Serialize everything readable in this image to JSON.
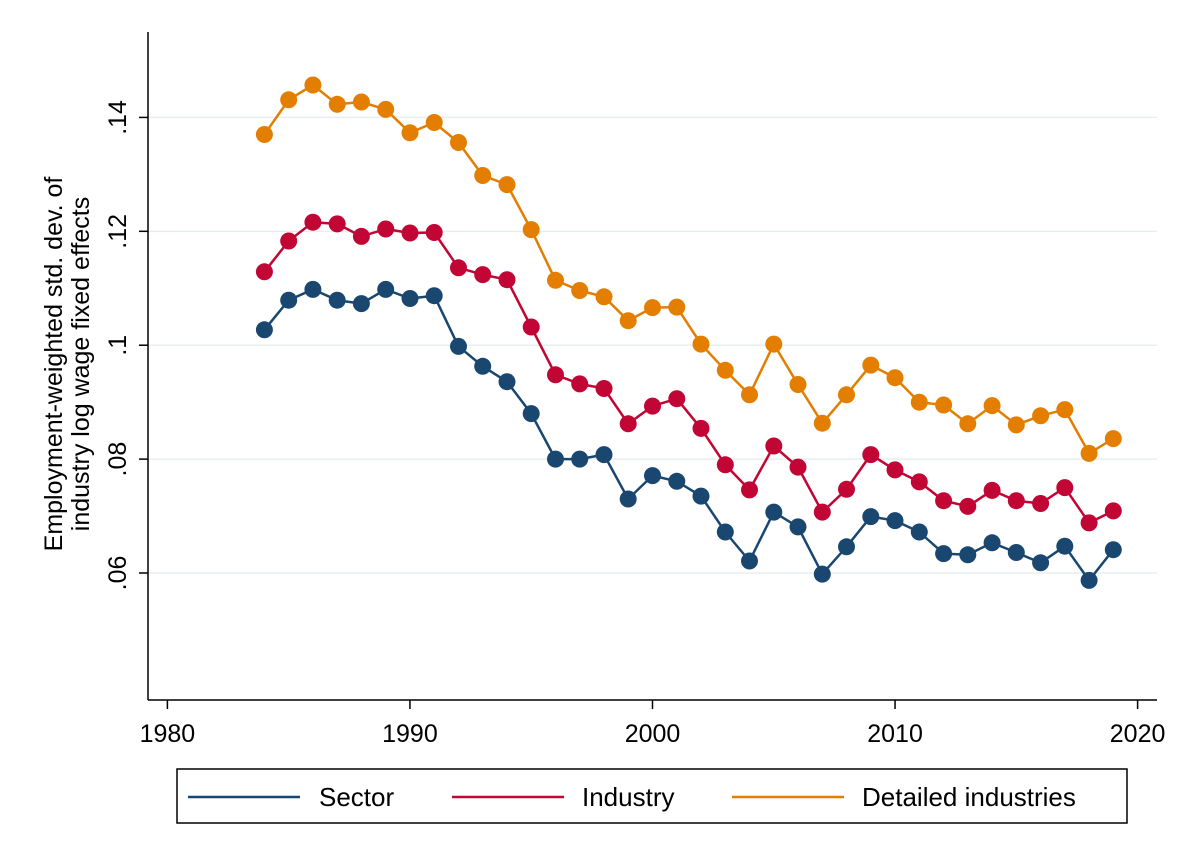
{
  "chart_data": {
    "type": "line",
    "title": "",
    "xlabel": "",
    "ylabel_lines": [
      "Employment-weighted std. dev. of",
      "industry log wage fixed effects"
    ],
    "xlim": [
      1979.2,
      2020.8
    ],
    "ylim": [
      0.0377,
      0.155
    ],
    "x_ticks": [
      1980,
      1990,
      2000,
      2010,
      2020
    ],
    "x_tick_labels": [
      "1980",
      "1990",
      "2000",
      "2010",
      "2020"
    ],
    "y_ticks": [
      0.06,
      0.08,
      0.1,
      0.12,
      0.14
    ],
    "y_tick_labels": [
      ".06",
      ".08",
      ".1",
      ".12",
      ".14"
    ],
    "grid": true,
    "legend_position": "bottom",
    "x": [
      1984,
      1985,
      1986,
      1987,
      1988,
      1989,
      1990,
      1991,
      1992,
      1993,
      1994,
      1995,
      1996,
      1997,
      1998,
      1999,
      2000,
      2001,
      2002,
      2003,
      2004,
      2005,
      2006,
      2007,
      2008,
      2009,
      2010,
      2011,
      2012,
      2013,
      2014,
      2015,
      2016,
      2017,
      2018,
      2019
    ],
    "series": [
      {
        "name": "Sector",
        "color": "#1a476f",
        "values": [
          0.1027,
          0.1079,
          0.1098,
          0.1079,
          0.1073,
          0.1098,
          0.1082,
          0.1087,
          0.0998,
          0.0963,
          0.0936,
          0.088,
          0.08,
          0.08,
          0.0808,
          0.073,
          0.0771,
          0.0761,
          0.0735,
          0.0672,
          0.0621,
          0.0707,
          0.0681,
          0.0598,
          0.0646,
          0.0699,
          0.0692,
          0.0672,
          0.0634,
          0.0632,
          0.0653,
          0.0636,
          0.0618,
          0.0647,
          0.0587,
          0.0641
        ]
      },
      {
        "name": "Industry",
        "color": "#c10534",
        "values": [
          0.1129,
          0.1183,
          0.1216,
          0.1213,
          0.1191,
          0.1204,
          0.1197,
          0.1198,
          0.1136,
          0.1124,
          0.1115,
          0.1032,
          0.0948,
          0.0932,
          0.0924,
          0.0862,
          0.0893,
          0.0906,
          0.0854,
          0.079,
          0.0746,
          0.0823,
          0.0786,
          0.0707,
          0.0747,
          0.0808,
          0.0781,
          0.076,
          0.0727,
          0.0717,
          0.0745,
          0.0727,
          0.0722,
          0.075,
          0.0688,
          0.0709
        ]
      },
      {
        "name": "Detailed industries",
        "color": "#e37e00",
        "values": [
          0.137,
          0.1431,
          0.1457,
          0.1423,
          0.1427,
          0.1414,
          0.1373,
          0.1391,
          0.1356,
          0.1298,
          0.1282,
          0.1203,
          0.1114,
          0.1096,
          0.1085,
          0.1043,
          0.1066,
          0.1067,
          0.1002,
          0.0956,
          0.0913,
          0.1002,
          0.0931,
          0.0863,
          0.0913,
          0.0965,
          0.0943,
          0.09,
          0.0895,
          0.0862,
          0.0894,
          0.086,
          0.0876,
          0.0887,
          0.081,
          0.0836
        ]
      }
    ]
  }
}
